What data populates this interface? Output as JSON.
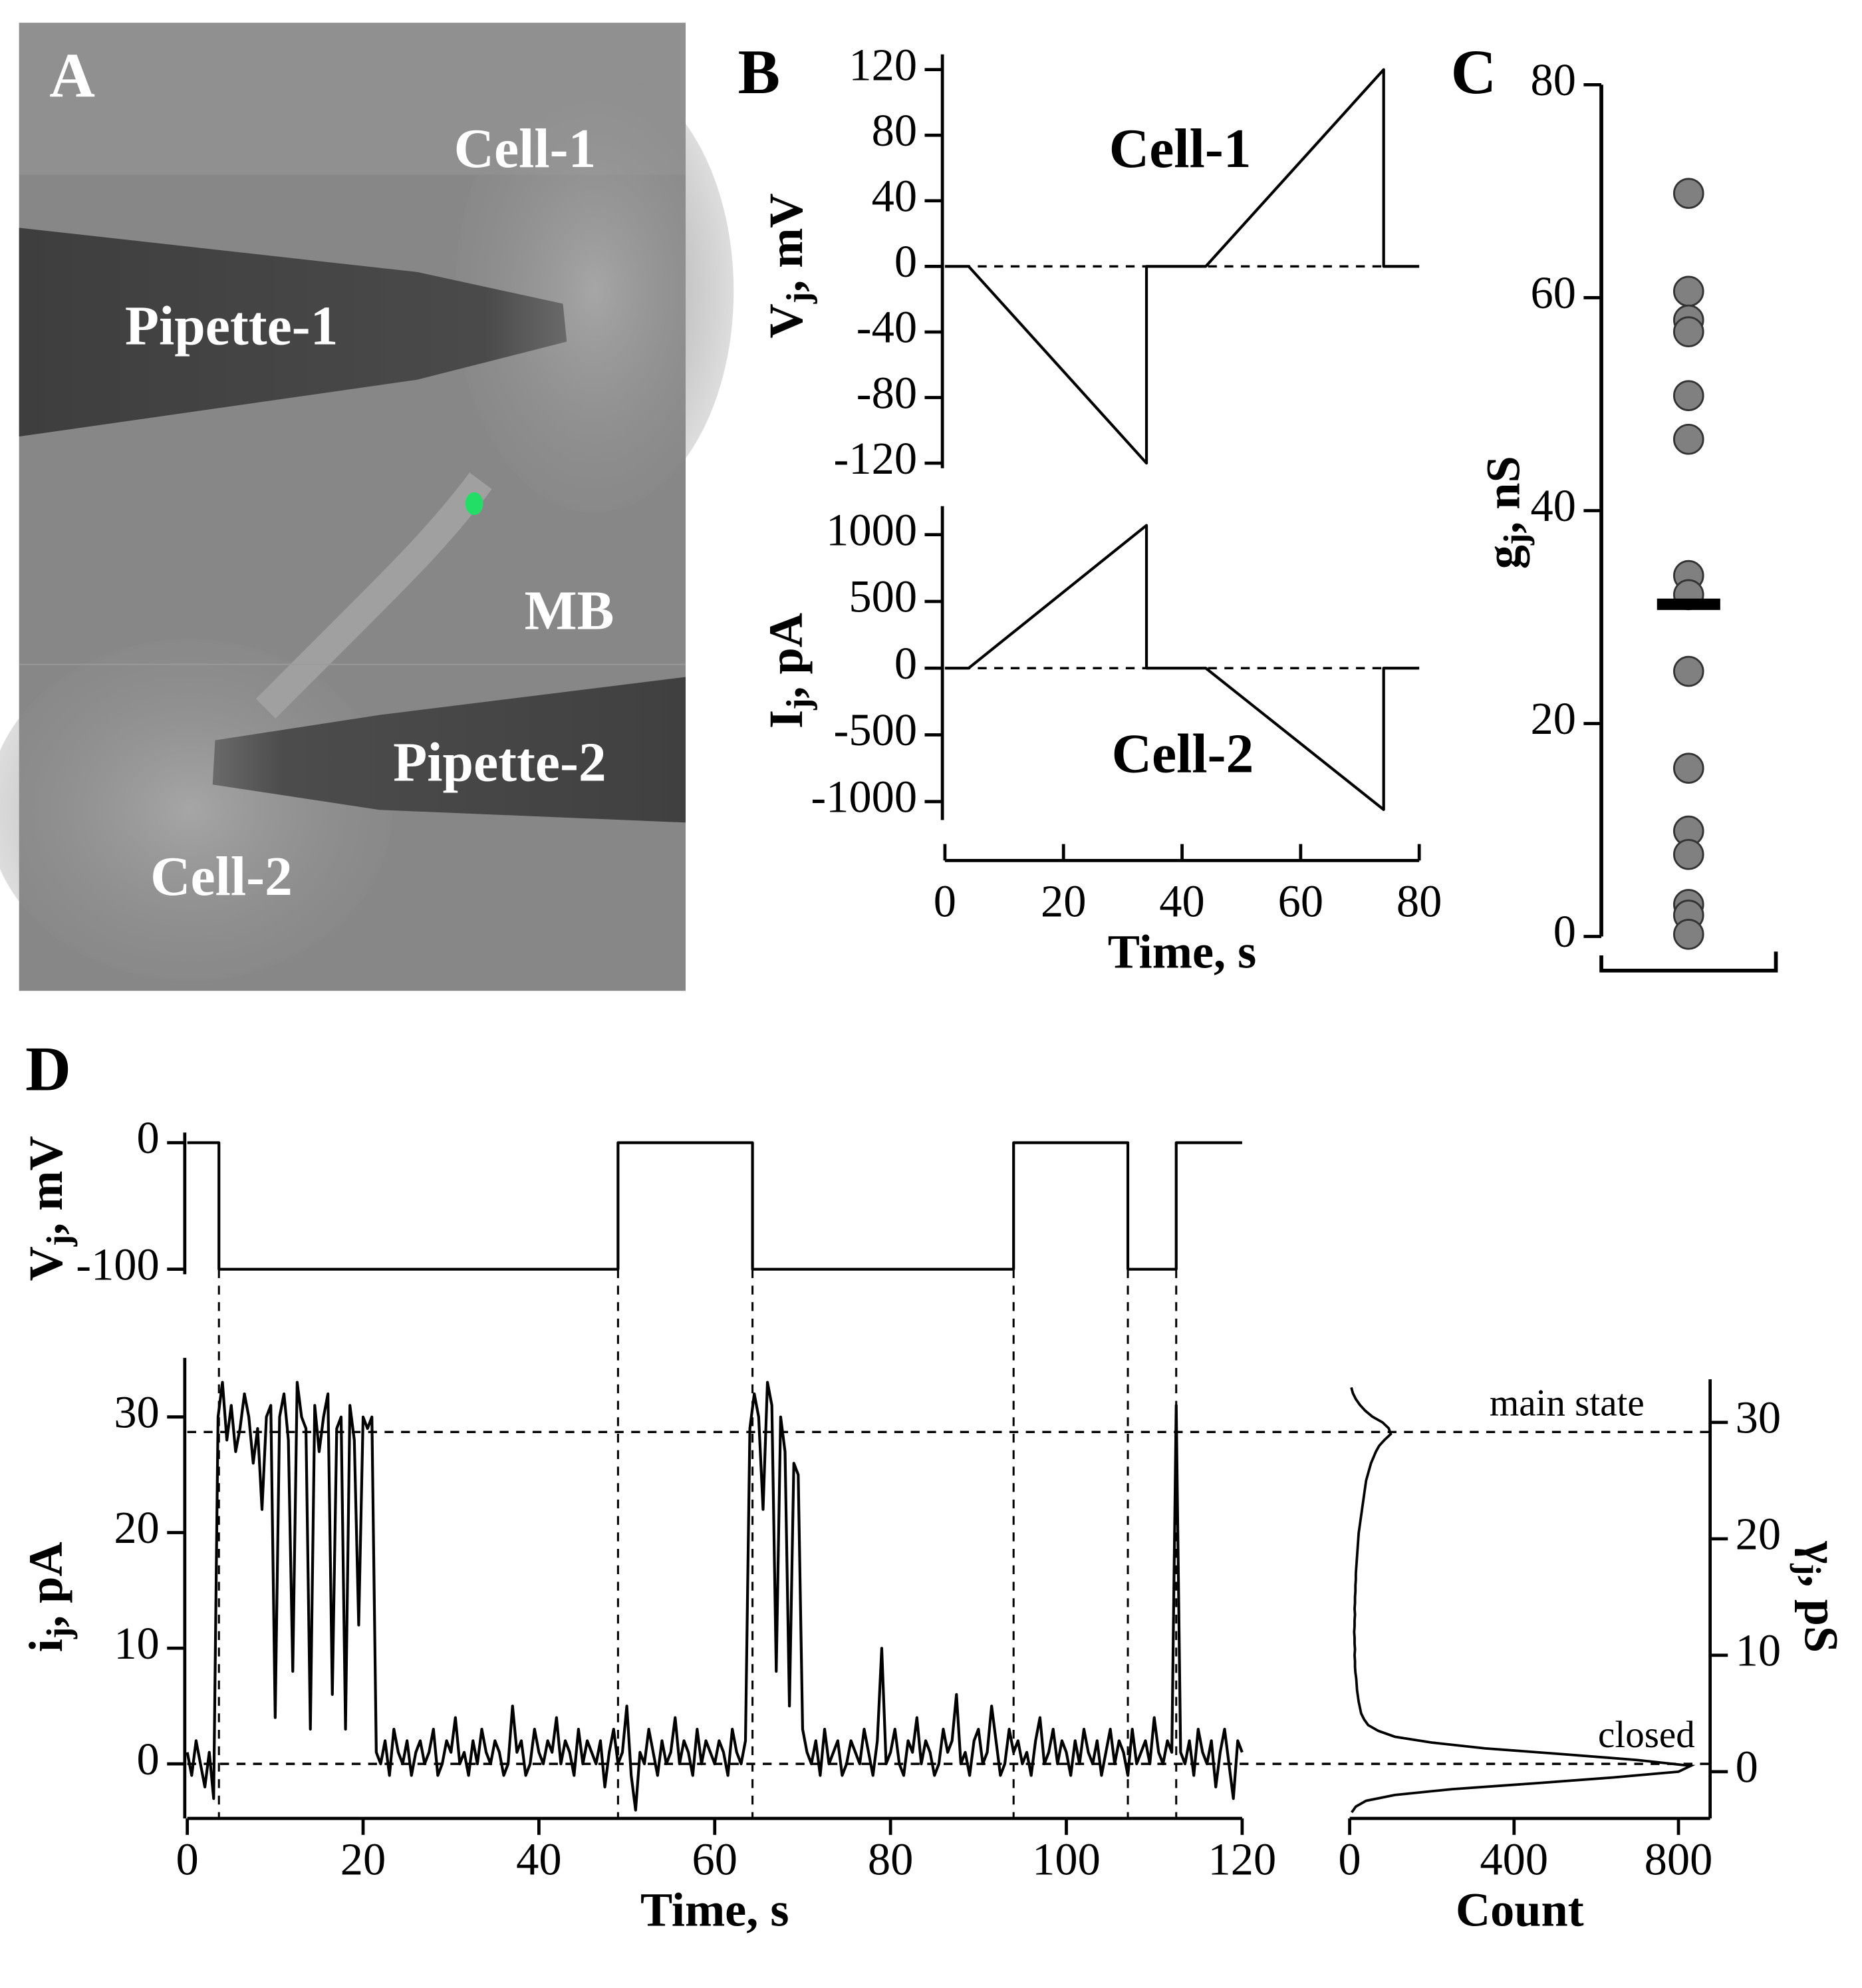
{
  "chart_data": [
    {
      "type": "image",
      "panel": "A",
      "labels": [
        "Cell-1",
        "Pipette-1",
        "MB",
        "Pipette-2",
        "Cell-2"
      ]
    },
    {
      "type": "line",
      "panel": "B",
      "ylabel": "Vj, mV",
      "annotation": "Cell-1",
      "ylim": [
        -120,
        120
      ],
      "yticks": [
        -120,
        -80,
        -40,
        0,
        40,
        80,
        120
      ],
      "x": [
        0,
        4,
        34,
        34,
        44,
        74,
        74,
        80
      ],
      "values": [
        0,
        0,
        -120,
        0,
        0,
        120,
        0,
        0
      ],
      "color": "#000000"
    },
    {
      "type": "line",
      "ylabel": "Ij, pA",
      "annotation": "Cell-2",
      "xlabel": "Time, s",
      "ylim": [
        -1100,
        1100
      ],
      "yticks": [
        -1000,
        -500,
        0,
        500,
        1000
      ],
      "xlim": [
        0,
        80
      ],
      "xticks": [
        0,
        20,
        40,
        60,
        80
      ],
      "x": [
        0,
        4,
        34,
        34,
        44,
        74,
        74,
        80
      ],
      "values": [
        0,
        0,
        1070,
        0,
        0,
        -1060,
        0,
        0
      ],
      "color": "#000000"
    },
    {
      "type": "scatter",
      "panel": "C",
      "ylabel": "gj, nS",
      "ylim": [
        0,
        80
      ],
      "yticks": [
        0,
        20,
        40,
        60,
        80
      ],
      "values": [
        69.8,
        60.6,
        57.9,
        56.8,
        50.8,
        46.7,
        33.9,
        32.1,
        24.9,
        15.8,
        9.9,
        7.7,
        3.0,
        2.0,
        0.2
      ],
      "mean": 31.2,
      "color": "#808080"
    },
    {
      "type": "line",
      "panel": "D",
      "ylabel": "Vj, mV",
      "ylim": [
        -100,
        0
      ],
      "yticks": [
        -100,
        0
      ],
      "x": [
        0,
        3.6,
        3.6,
        49,
        49,
        64.3,
        64.3,
        94,
        94,
        107,
        107,
        112.5,
        112.5,
        120
      ],
      "values": [
        0,
        0,
        -100,
        -100,
        0,
        0,
        -100,
        -100,
        0,
        0,
        -100,
        -100,
        0,
        0
      ],
      "color": "#000000"
    },
    {
      "type": "line",
      "ylabel": "ij, pA",
      "xlabel": "Time, s",
      "ylim": [
        -4.5,
        33.8
      ],
      "yticks": [
        0,
        10,
        20,
        30
      ],
      "xlim": [
        0,
        120
      ],
      "xticks": [
        0,
        20,
        40,
        60,
        80,
        100,
        120
      ],
      "reference_lines": [
        {
          "value": 28.7,
          "label": "main state"
        },
        {
          "value": 0,
          "label": "closed"
        }
      ],
      "color": "#000000",
      "x": [
        0,
        0.5,
        1,
        1.5,
        2,
        2.5,
        3,
        3.5,
        4,
        4.5,
        5,
        5.5,
        6,
        6.5,
        7,
        7.5,
        8,
        8.5,
        9,
        9.5,
        10,
        10.5,
        11,
        11.5,
        12,
        12.5,
        13,
        13.5,
        14,
        14.5,
        15,
        15.5,
        16,
        16.5,
        17,
        17.5,
        18,
        18.5,
        19,
        19.5,
        20,
        20.5,
        21,
        21.5,
        22,
        22.5,
        23,
        23.5,
        24,
        24.5,
        25,
        25.5,
        26,
        26.5,
        27,
        27.5,
        28,
        28.5,
        29,
        29.5,
        30,
        30.5,
        31,
        31.5,
        32,
        32.5,
        33,
        33.5,
        34,
        34.5,
        35,
        35.5,
        36,
        36.5,
        37,
        37.5,
        38,
        38.5,
        39,
        39.5,
        40,
        40.5,
        41,
        41.5,
        42,
        42.5,
        43,
        43.5,
        44,
        44.5,
        45,
        45.5,
        46,
        46.5,
        47,
        47.5,
        48,
        48.5,
        49,
        49.5,
        50,
        50.5,
        51,
        51.5,
        52,
        52.5,
        53,
        53.5,
        54,
        54.5,
        55,
        55.5,
        56,
        56.5,
        57,
        57.5,
        58,
        58.5,
        59,
        59.5,
        60,
        60.5,
        61,
        61.5,
        62,
        62.5,
        63,
        63.5,
        64,
        64.5,
        65,
        65.5,
        66,
        66.5,
        67,
        67.5,
        68,
        68.5,
        69,
        69.5,
        70,
        70.5,
        71,
        71.5,
        72,
        72.5,
        73,
        73.5,
        74,
        74.5,
        75,
        75.5,
        76,
        76.5,
        77,
        77.5,
        78,
        78.5,
        79,
        79.5,
        80,
        80.5,
        81,
        81.5,
        82,
        82.5,
        83,
        83.5,
        84,
        84.5,
        85,
        85.5,
        86,
        86.5,
        87,
        87.5,
        88,
        88.5,
        89,
        89.5,
        90,
        90.5,
        91,
        91.5,
        92,
        92.5,
        93,
        93.5,
        94,
        94.5,
        95,
        95.5,
        96,
        96.5,
        97,
        97.5,
        98,
        98.5,
        99,
        99.5,
        100,
        100.5,
        101,
        101.5,
        102,
        102.5,
        103,
        103.5,
        104,
        104.5,
        105,
        105.5,
        106,
        106.5,
        107,
        107.5,
        108,
        108.5,
        109,
        109.5,
        110,
        110.5,
        111,
        111.5,
        112,
        112.5,
        113,
        113.5,
        114,
        114.5,
        115,
        115.5,
        116,
        116.5,
        117,
        117.5,
        118,
        118.5,
        119,
        119.5,
        120
      ],
      "values": [
        1,
        -1,
        2,
        0,
        -2,
        1,
        -3,
        30,
        33,
        28,
        31,
        27,
        29,
        32,
        30,
        26,
        29,
        22,
        30,
        31,
        4,
        30,
        32,
        28,
        8,
        33,
        30,
        29,
        3,
        31,
        27,
        30,
        32,
        6,
        29,
        30,
        3,
        31,
        28,
        12,
        30,
        29,
        30,
        1,
        0,
        2,
        -1,
        3,
        1,
        0,
        2,
        -1,
        1,
        2,
        0,
        1,
        3,
        -1,
        0,
        2,
        1,
        4,
        0,
        1,
        -1,
        2,
        0,
        3,
        1,
        0,
        2,
        1,
        -1,
        0,
        5,
        1,
        2,
        -1,
        0,
        3,
        1,
        0,
        2,
        1,
        4,
        0,
        2,
        1,
        -1,
        3,
        0,
        2,
        1,
        0,
        2,
        -2,
        1,
        3,
        0,
        1,
        5,
        -1,
        -4,
        1,
        0,
        3,
        1,
        -1,
        2,
        0,
        1,
        4,
        0,
        2,
        1,
        -1,
        3,
        0,
        2,
        1,
        0,
        2,
        1,
        -1,
        3,
        1,
        0,
        2,
        29,
        32,
        30,
        22,
        33,
        31,
        8,
        30,
        27,
        5,
        26,
        25,
        3,
        1,
        0,
        2,
        -1,
        3,
        0,
        1,
        2,
        -1,
        0,
        2,
        1,
        0,
        3,
        1,
        -1,
        2,
        10,
        0,
        1,
        3,
        0,
        -1,
        2,
        1,
        4,
        0,
        2,
        1,
        -1,
        0,
        3,
        1,
        2,
        6,
        0,
        1,
        -1,
        2,
        3,
        0,
        1,
        5,
        2,
        -1,
        0,
        3,
        1,
        2,
        0,
        1,
        -1,
        2,
        4,
        0,
        1,
        3,
        0,
        2,
        1,
        -1,
        2,
        0,
        3,
        1,
        0,
        2,
        -1,
        1,
        3,
        0,
        2,
        1,
        -1,
        3,
        0,
        1,
        2,
        0,
        4,
        1,
        0,
        2,
        1,
        31,
        1,
        0,
        2,
        -1,
        3,
        1,
        0,
        2,
        -2,
        1,
        3,
        0,
        -3,
        2,
        1
      ]
    },
    {
      "type": "histogram",
      "xlabel": "Count",
      "y2label": "γj, pS",
      "xlim": [
        0,
        877
      ],
      "xticks": [
        0,
        400,
        800
      ],
      "y2lim": [
        -3.8,
        33.7
      ],
      "y2ticks": [
        0,
        10,
        20,
        30
      ],
      "color": "#000000",
      "levels": [
        -3.5,
        -3,
        -2.5,
        -2,
        -1.5,
        -1,
        -0.5,
        0,
        0.5,
        1,
        1.5,
        2,
        2.5,
        3,
        3.5,
        4,
        4.5,
        5,
        5.5,
        6,
        6.5,
        7,
        7.5,
        8,
        8.5,
        9,
        9.5,
        10,
        10.5,
        11,
        11.5,
        12,
        12.5,
        13,
        13.5,
        14,
        14.5,
        15,
        15.5,
        16,
        16.5,
        17,
        17.5,
        18,
        18.5,
        19,
        19.5,
        20,
        20.5,
        21,
        21.5,
        22,
        22.5,
        23,
        23.5,
        24,
        24.5,
        25,
        25.5,
        26,
        26.5,
        27,
        27.5,
        28,
        28.5,
        29,
        29.5,
        30,
        30.5,
        31,
        31.5,
        32,
        32.5,
        33
      ],
      "values": [
        5,
        15,
        40,
        110,
        250,
        450,
        640,
        800,
        830,
        700,
        520,
        330,
        200,
        110,
        70,
        45,
        35,
        28,
        25,
        22,
        20,
        18,
        17,
        16,
        14,
        13,
        13,
        12,
        13,
        12,
        12,
        11,
        12,
        12,
        13,
        12,
        13,
        13,
        14,
        14,
        15,
        15,
        16,
        17,
        18,
        19,
        20,
        21,
        22,
        24,
        26,
        28,
        30,
        32,
        34,
        36,
        38,
        40,
        44,
        48,
        52,
        58,
        64,
        72,
        85,
        100,
        95,
        80,
        55,
        38,
        25,
        15,
        8,
        4
      ]
    }
  ]
}
